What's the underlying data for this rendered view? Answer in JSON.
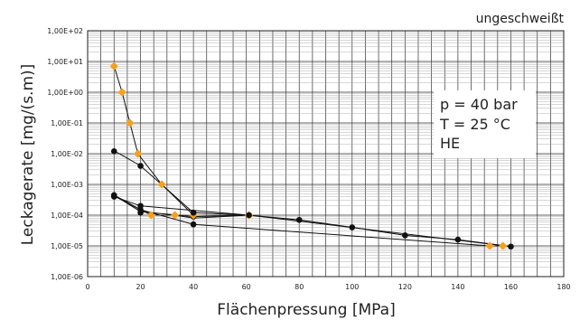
{
  "chart_data": {
    "type": "scatter",
    "corner_label": "ungeschweißt",
    "xlabel": "Flächenpressung [MPa]",
    "ylabel": "Leckagerate [mg/(s.m)]",
    "xlim": [
      0,
      180
    ],
    "ylim_exp": [
      -6,
      2
    ],
    "yscale": "log",
    "x_ticks": [
      "0",
      "20",
      "40",
      "60",
      "80",
      "100",
      "120",
      "140",
      "160",
      "180"
    ],
    "y_ticks": [
      "1,00E-06",
      "1,00E-05",
      "1,00E-04",
      "1,00E-03",
      "1,00E-02",
      "1,00E-01",
      "1,00E+00",
      "1,00E+01",
      "1,00E+02"
    ],
    "grid": true,
    "annotation": [
      "p = 40 bar",
      "T = 25 °C",
      "HE"
    ],
    "series": [
      {
        "color": "#f5a01e",
        "marker": "diamond",
        "points": [
          [
            10,
            7.0
          ],
          [
            13,
            1.0
          ],
          [
            16,
            0.1
          ],
          [
            19,
            0.01
          ],
          [
            28,
            0.001
          ],
          [
            40,
            0.0001
          ],
          [
            61,
            0.0001
          ],
          [
            33,
            0.0001
          ],
          [
            24,
            0.0001
          ],
          [
            61,
            0.0001
          ],
          [
            152,
            1e-05
          ],
          [
            157,
            1e-05
          ]
        ]
      },
      {
        "color": "#111111",
        "marker": "circle",
        "points": [
          [
            10,
            0.012
          ],
          [
            20,
            0.004
          ],
          [
            40,
            0.00012
          ],
          [
            61,
            0.0001
          ],
          [
            80,
            7e-05
          ],
          [
            100,
            4e-05
          ],
          [
            120,
            2.2e-05
          ],
          [
            140,
            1.6e-05
          ],
          [
            160,
            9.5e-06
          ]
        ]
      }
    ],
    "lines": [
      {
        "color": "#111111",
        "points": [
          [
            10,
            7.0
          ],
          [
            13,
            1.0
          ],
          [
            16,
            0.1
          ],
          [
            19,
            0.01
          ],
          [
            28,
            0.001
          ],
          [
            40,
            0.0001
          ]
        ]
      },
      {
        "color": "#111111",
        "points": [
          [
            10,
            0.012
          ],
          [
            12,
            0.01
          ],
          [
            20,
            0.004
          ],
          [
            40,
            0.00012
          ],
          [
            61,
            0.0001
          ],
          [
            80,
            7e-05
          ],
          [
            100,
            4e-05
          ],
          [
            120,
            2.2e-05
          ],
          [
            140,
            1.6e-05
          ],
          [
            160,
            9.5e-06
          ]
        ]
      },
      {
        "color": "#111111",
        "points": [
          [
            10,
            0.00045
          ],
          [
            20,
            0.00015
          ],
          [
            40,
            5e-05
          ],
          [
            152,
            1e-05
          ],
          [
            157,
            1e-05
          ]
        ]
      },
      {
        "color": "#111111",
        "points": [
          [
            10,
            0.0004
          ],
          [
            20,
            0.0002
          ],
          [
            61,
            0.0001
          ]
        ]
      },
      {
        "color": "#111111",
        "points": [
          [
            10,
            0.00042
          ],
          [
            24,
            0.0001
          ],
          [
            33,
            0.0001
          ],
          [
            40,
            8e-05
          ],
          [
            61,
            0.0001
          ]
        ]
      },
      {
        "color": "#111111",
        "points": [
          [
            10,
            0.00045
          ],
          [
            20,
            0.00013
          ],
          [
            40,
            9e-05
          ],
          [
            61,
            0.0001
          ],
          [
            160,
            9.5e-06
          ]
        ]
      }
    ],
    "extra_black_points": [
      [
        10,
        0.00045
      ],
      [
        10,
        0.0004
      ],
      [
        20,
        0.0002
      ],
      [
        20,
        0.00015
      ],
      [
        20,
        0.00012
      ],
      [
        40,
        0.00012
      ],
      [
        40,
        9e-05
      ],
      [
        40,
        5e-05
      ]
    ]
  }
}
